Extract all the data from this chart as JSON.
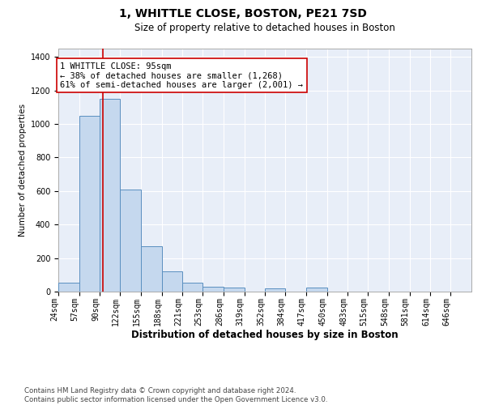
{
  "title": "1, WHITTLE CLOSE, BOSTON, PE21 7SD",
  "subtitle": "Size of property relative to detached houses in Boston",
  "xlabel": "Distribution of detached houses by size in Boston",
  "ylabel": "Number of detached properties",
  "bar_edges": [
    24,
    57,
    90,
    122,
    155,
    188,
    221,
    253,
    286,
    319,
    352,
    384,
    417,
    450,
    483,
    515,
    548,
    581,
    614,
    646,
    679
  ],
  "bar_heights": [
    55,
    1050,
    1150,
    610,
    270,
    120,
    55,
    30,
    25,
    0,
    20,
    0,
    25,
    0,
    0,
    0,
    0,
    0,
    0,
    0
  ],
  "bar_color": "#c5d8ee",
  "bar_edge_color": "#5a8fc0",
  "bar_edge_width": 0.7,
  "background_color": "#e8eef8",
  "grid_color": "#ffffff",
  "property_size": 95,
  "red_line_color": "#cc0000",
  "annotation_line1": "1 WHITTLE CLOSE: 95sqm",
  "annotation_line2": "← 38% of detached houses are smaller (1,268)",
  "annotation_line3": "61% of semi-detached houses are larger (2,001) →",
  "annotation_box_color": "#cc0000",
  "ylim": [
    0,
    1450
  ],
  "yticks": [
    0,
    200,
    400,
    600,
    800,
    1000,
    1200,
    1400
  ],
  "footer": "Contains HM Land Registry data © Crown copyright and database right 2024.\nContains public sector information licensed under the Open Government Licence v3.0.",
  "title_fontsize": 10,
  "subtitle_fontsize": 8.5,
  "xlabel_fontsize": 8.5,
  "ylabel_fontsize": 7.5,
  "tick_fontsize": 7,
  "annotation_fontsize": 7.5
}
